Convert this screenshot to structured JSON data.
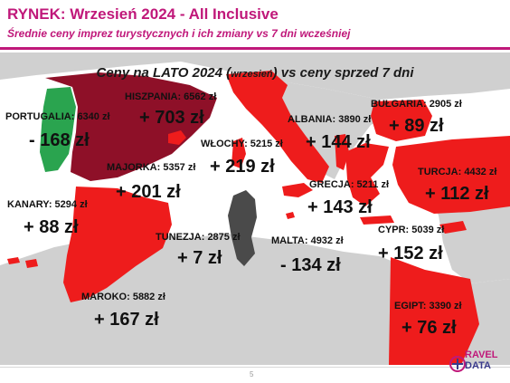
{
  "header": {
    "title": "RYNEK: Wrzesień 2024 - All Inclusive",
    "subtitle": "Średnie ceny imprez turystycznych i ich zmiany vs 7 dni wcześniej"
  },
  "colors": {
    "increase": "#ee1c1c",
    "decrease": "#2aa44f",
    "big_increase": "#8e1028",
    "no_change": "#4a4a4a",
    "land": "#d0d0d0",
    "sea": "#ffffff",
    "accent": "#c0187a"
  },
  "chart_data": {
    "type": "table",
    "title_main": "Ceny na LATO 2024 (",
    "title_small": "wrzesień",
    "title_end": ") vs ceny sprzed 7 dni",
    "currency": "zł",
    "countries": [
      {
        "name": "PORTUGALIA",
        "price_label": "PORTUGALIA: 6340 zł",
        "price": 6340,
        "change": -168,
        "change_label": "- 168 zł"
      },
      {
        "name": "HISZPANIA",
        "price_label": "HISZPANIA: 6562 zł",
        "price": 6562,
        "change": 703,
        "change_label": "+ 703 zł"
      },
      {
        "name": "MAJORKA",
        "price_label": "MAJORKA: 5357 zł",
        "price": 5357,
        "change": 201,
        "change_label": "+ 201 zł"
      },
      {
        "name": "WŁOCHY",
        "price_label": "WŁOCHY: 5215 zł",
        "price": 5215,
        "change": 219,
        "change_label": "+ 219 zł"
      },
      {
        "name": "ALBANIA",
        "price_label": "ALBANIA: 3890 zł",
        "price": 3890,
        "change": 144,
        "change_label": "+ 144 zł"
      },
      {
        "name": "BUŁGARIA",
        "price_label": "BUŁGARIA: 2905 zł",
        "price": 2905,
        "change": 89,
        "change_label": "+ 89 zł"
      },
      {
        "name": "TURCJA",
        "price_label": "TURCJA: 4432 zł",
        "price": 4432,
        "change": 112,
        "change_label": "+ 112 zł"
      },
      {
        "name": "GRECJA",
        "price_label": "GRECJA: 5211 zł",
        "price": 5211,
        "change": 143,
        "change_label": "+ 143 zł"
      },
      {
        "name": "KANARY",
        "price_label": "KANARY: 5294 zł",
        "price": 5294,
        "change": 88,
        "change_label": "+ 88 zł"
      },
      {
        "name": "TUNEZJA",
        "price_label": "TUNEZJA: 2875 zł",
        "price": 2875,
        "change": 7,
        "change_label": "+ 7 zł"
      },
      {
        "name": "MALTA",
        "price_label": "MALTA: 4932 zł",
        "price": 4932,
        "change": -134,
        "change_label": "- 134 zł"
      },
      {
        "name": "CYPR",
        "price_label": "CYPR: 5039 zł",
        "price": 5039,
        "change": 152,
        "change_label": "+ 152 zł"
      },
      {
        "name": "MAROKO",
        "price_label": "MAROKO: 5882 zł",
        "price": 5882,
        "change": 167,
        "change_label": "+ 167 zł"
      },
      {
        "name": "EGIPT",
        "price_label": "EGIPT: 3390 zł",
        "price": 3390,
        "change": 76,
        "change_label": "+ 76 zł"
      }
    ]
  },
  "footer": {
    "page_number": "5",
    "logo_line1": "RAVEL",
    "logo_line2": "DATA"
  }
}
